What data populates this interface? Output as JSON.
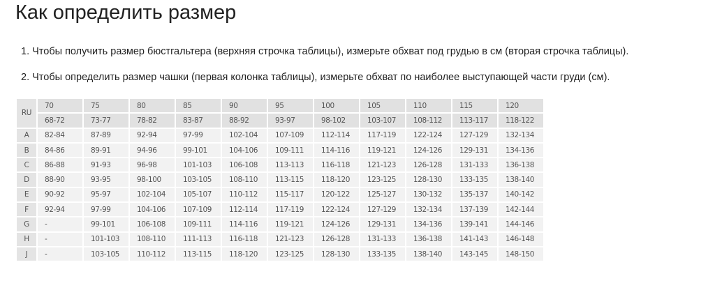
{
  "title": "Как определить размер",
  "instructions": [
    "1. Чтобы получить размер бюстгальтера (верхняя строчка таблицы), измерьте обхват под грудью в см (вторая строчка таблицы).",
    "2. Чтобы определить размер чашки (первая колонка таблицы), измерьте обхват по наиболее выступающей части груди (см)."
  ],
  "table": {
    "corner": "RU",
    "sizes": [
      "70",
      "75",
      "80",
      "85",
      "90",
      "95",
      "100",
      "105",
      "110",
      "115",
      "120"
    ],
    "underbust": [
      "68-72",
      "73-77",
      "78-82",
      "83-87",
      "88-92",
      "93-97",
      "98-102",
      "103-107",
      "108-112",
      "113-117",
      "118-122"
    ],
    "rows": [
      {
        "cup": "A",
        "values": [
          "82-84",
          "87-89",
          "92-94",
          "97-99",
          "102-104",
          "107-109",
          "112-114",
          "117-119",
          "122-124",
          "127-129",
          "132-134"
        ]
      },
      {
        "cup": "B",
        "values": [
          "84-86",
          "89-91",
          "94-96",
          "99-101",
          "104-106",
          "109-111",
          "114-116",
          "119-121",
          "124-126",
          "129-131",
          "134-136"
        ]
      },
      {
        "cup": "C",
        "values": [
          "86-88",
          "91-93",
          "96-98",
          "101-103",
          "106-108",
          "113-113",
          "116-118",
          "121-123",
          "126-128",
          "131-133",
          "136-138"
        ]
      },
      {
        "cup": "D",
        "values": [
          "88-90",
          "93-95",
          "98-100",
          "103-105",
          "108-110",
          "113-115",
          "118-120",
          "123-125",
          "128-130",
          "133-135",
          "138-140"
        ]
      },
      {
        "cup": "E",
        "values": [
          "90-92",
          "95-97",
          "102-104",
          "105-107",
          "110-112",
          "115-117",
          "120-122",
          "125-127",
          "130-132",
          "135-137",
          "140-142"
        ]
      },
      {
        "cup": "F",
        "values": [
          "92-94",
          "97-99",
          "104-106",
          "107-109",
          "112-114",
          "117-119",
          "122-124",
          "127-129",
          "132-134",
          "137-139",
          "142-144"
        ]
      },
      {
        "cup": "G",
        "values": [
          "-",
          "99-101",
          "106-108",
          "109-111",
          "114-116",
          "119-121",
          "124-126",
          "129-131",
          "134-136",
          "139-141",
          "144-146"
        ]
      },
      {
        "cup": "H",
        "values": [
          "-",
          "101-103",
          "108-110",
          "111-113",
          "116-118",
          "121-123",
          "126-128",
          "131-133",
          "136-138",
          "141-143",
          "146-148"
        ]
      },
      {
        "cup": "J",
        "values": [
          "-",
          "103-105",
          "110-112",
          "113-115",
          "118-120",
          "123-125",
          "128-130",
          "133-135",
          "138-140",
          "143-145",
          "148-150"
        ]
      }
    ]
  }
}
